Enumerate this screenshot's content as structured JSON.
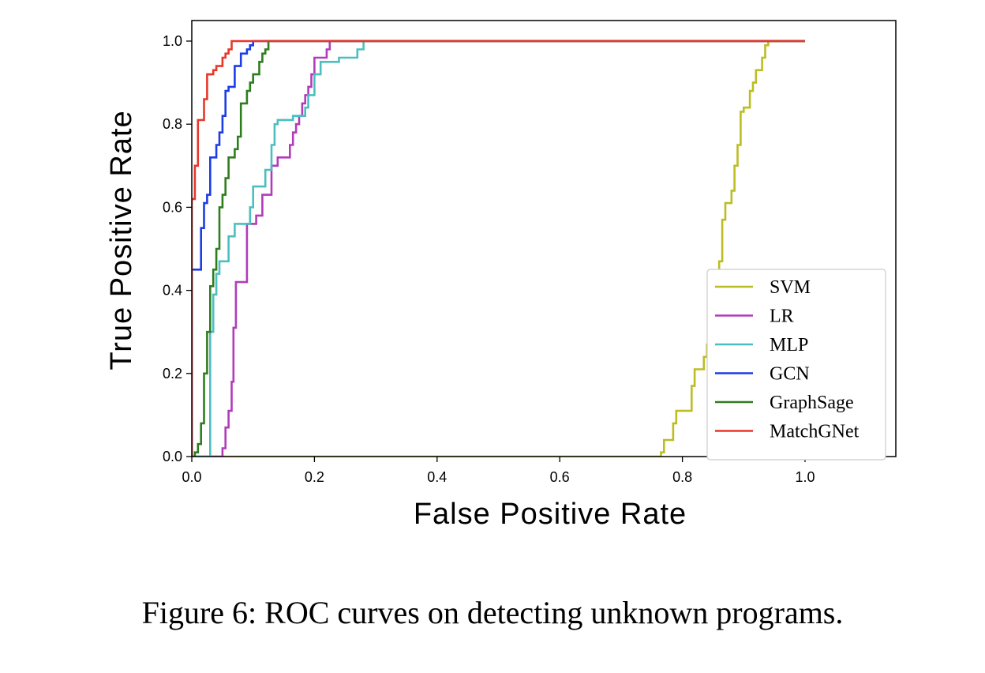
{
  "caption": "Figure 6: ROC curves on detecting unknown programs.",
  "chart_data": {
    "type": "line",
    "title": "",
    "xlabel": "False Positive Rate",
    "ylabel": "True Positive Rate",
    "xlim": [
      0.0,
      1.15
    ],
    "ylim": [
      0.0,
      1.05
    ],
    "xticks": [
      0.0,
      0.2,
      0.4,
      0.6,
      0.8,
      1.0
    ],
    "xtick_labels": [
      "0.0",
      "0.2",
      "0.4",
      "0.6",
      "0.8",
      "1.0"
    ],
    "yticks": [
      0.0,
      0.2,
      0.4,
      0.6,
      0.8,
      1.0
    ],
    "ytick_labels": [
      "0.0",
      "0.2",
      "0.4",
      "0.6",
      "0.8",
      "1.0"
    ],
    "grid": false,
    "legend_position": "lower-right",
    "series": [
      {
        "name": "SVM",
        "color": "#bcbd22",
        "points": [
          [
            0,
            0
          ],
          [
            0.765,
            0
          ],
          [
            0.765,
            0.01
          ],
          [
            0.77,
            0.01
          ],
          [
            0.77,
            0.04
          ],
          [
            0.785,
            0.04
          ],
          [
            0.785,
            0.08
          ],
          [
            0.79,
            0.08
          ],
          [
            0.79,
            0.11
          ],
          [
            0.815,
            0.11
          ],
          [
            0.815,
            0.17
          ],
          [
            0.82,
            0.17
          ],
          [
            0.82,
            0.21
          ],
          [
            0.835,
            0.21
          ],
          [
            0.835,
            0.24
          ],
          [
            0.84,
            0.24
          ],
          [
            0.84,
            0.27
          ],
          [
            0.845,
            0.27
          ],
          [
            0.845,
            0.32
          ],
          [
            0.85,
            0.32
          ],
          [
            0.85,
            0.36
          ],
          [
            0.855,
            0.36
          ],
          [
            0.855,
            0.42
          ],
          [
            0.86,
            0.42
          ],
          [
            0.86,
            0.47
          ],
          [
            0.865,
            0.47
          ],
          [
            0.865,
            0.57
          ],
          [
            0.87,
            0.57
          ],
          [
            0.87,
            0.61
          ],
          [
            0.88,
            0.61
          ],
          [
            0.88,
            0.64
          ],
          [
            0.885,
            0.64
          ],
          [
            0.885,
            0.7
          ],
          [
            0.89,
            0.7
          ],
          [
            0.89,
            0.75
          ],
          [
            0.895,
            0.75
          ],
          [
            0.895,
            0.83
          ],
          [
            0.9,
            0.83
          ],
          [
            0.9,
            0.84
          ],
          [
            0.91,
            0.84
          ],
          [
            0.91,
            0.88
          ],
          [
            0.915,
            0.88
          ],
          [
            0.915,
            0.9
          ],
          [
            0.92,
            0.9
          ],
          [
            0.92,
            0.93
          ],
          [
            0.93,
            0.93
          ],
          [
            0.93,
            0.96
          ],
          [
            0.935,
            0.96
          ],
          [
            0.935,
            0.99
          ],
          [
            0.94,
            0.99
          ],
          [
            0.94,
            1.0
          ],
          [
            1.0,
            1.0
          ]
        ]
      },
      {
        "name": "LR",
        "color": "#b23bbb",
        "points": [
          [
            0,
            0
          ],
          [
            0.05,
            0
          ],
          [
            0.05,
            0.02
          ],
          [
            0.055,
            0.02
          ],
          [
            0.055,
            0.07
          ],
          [
            0.06,
            0.07
          ],
          [
            0.06,
            0.11
          ],
          [
            0.065,
            0.11
          ],
          [
            0.065,
            0.18
          ],
          [
            0.068,
            0.18
          ],
          [
            0.068,
            0.31
          ],
          [
            0.072,
            0.31
          ],
          [
            0.072,
            0.42
          ],
          [
            0.09,
            0.42
          ],
          [
            0.09,
            0.56
          ],
          [
            0.105,
            0.56
          ],
          [
            0.105,
            0.58
          ],
          [
            0.115,
            0.58
          ],
          [
            0.115,
            0.63
          ],
          [
            0.13,
            0.63
          ],
          [
            0.13,
            0.7
          ],
          [
            0.14,
            0.7
          ],
          [
            0.14,
            0.72
          ],
          [
            0.16,
            0.72
          ],
          [
            0.16,
            0.75
          ],
          [
            0.165,
            0.75
          ],
          [
            0.165,
            0.78
          ],
          [
            0.17,
            0.78
          ],
          [
            0.17,
            0.8
          ],
          [
            0.175,
            0.8
          ],
          [
            0.175,
            0.82
          ],
          [
            0.18,
            0.82
          ],
          [
            0.18,
            0.85
          ],
          [
            0.185,
            0.85
          ],
          [
            0.185,
            0.87
          ],
          [
            0.19,
            0.87
          ],
          [
            0.19,
            0.89
          ],
          [
            0.195,
            0.89
          ],
          [
            0.195,
            0.92
          ],
          [
            0.2,
            0.92
          ],
          [
            0.2,
            0.96
          ],
          [
            0.22,
            0.96
          ],
          [
            0.22,
            0.98
          ],
          [
            0.225,
            0.98
          ],
          [
            0.225,
            1.0
          ],
          [
            1.0,
            1.0
          ]
        ]
      },
      {
        "name": "MLP",
        "color": "#4bbfbf",
        "points": [
          [
            0,
            0
          ],
          [
            0.03,
            0
          ],
          [
            0.03,
            0.3
          ],
          [
            0.035,
            0.3
          ],
          [
            0.035,
            0.39
          ],
          [
            0.04,
            0.39
          ],
          [
            0.04,
            0.44
          ],
          [
            0.045,
            0.44
          ],
          [
            0.045,
            0.47
          ],
          [
            0.06,
            0.47
          ],
          [
            0.06,
            0.53
          ],
          [
            0.07,
            0.53
          ],
          [
            0.07,
            0.56
          ],
          [
            0.095,
            0.56
          ],
          [
            0.095,
            0.6
          ],
          [
            0.1,
            0.6
          ],
          [
            0.1,
            0.65
          ],
          [
            0.12,
            0.65
          ],
          [
            0.12,
            0.69
          ],
          [
            0.13,
            0.69
          ],
          [
            0.13,
            0.75
          ],
          [
            0.135,
            0.75
          ],
          [
            0.135,
            0.8
          ],
          [
            0.14,
            0.8
          ],
          [
            0.14,
            0.81
          ],
          [
            0.165,
            0.81
          ],
          [
            0.165,
            0.82
          ],
          [
            0.185,
            0.82
          ],
          [
            0.185,
            0.84
          ],
          [
            0.19,
            0.84
          ],
          [
            0.19,
            0.87
          ],
          [
            0.2,
            0.87
          ],
          [
            0.2,
            0.92
          ],
          [
            0.21,
            0.92
          ],
          [
            0.21,
            0.95
          ],
          [
            0.24,
            0.95
          ],
          [
            0.24,
            0.96
          ],
          [
            0.27,
            0.96
          ],
          [
            0.27,
            0.98
          ],
          [
            0.28,
            0.98
          ],
          [
            0.28,
            1.0
          ],
          [
            1.0,
            1.0
          ]
        ]
      },
      {
        "name": "GCN",
        "color": "#1c3ce6",
        "points": [
          [
            0,
            0
          ],
          [
            0,
            0.45
          ],
          [
            0.015,
            0.45
          ],
          [
            0.015,
            0.55
          ],
          [
            0.02,
            0.55
          ],
          [
            0.02,
            0.61
          ],
          [
            0.025,
            0.61
          ],
          [
            0.025,
            0.63
          ],
          [
            0.03,
            0.63
          ],
          [
            0.03,
            0.72
          ],
          [
            0.04,
            0.72
          ],
          [
            0.04,
            0.75
          ],
          [
            0.045,
            0.75
          ],
          [
            0.045,
            0.78
          ],
          [
            0.05,
            0.78
          ],
          [
            0.05,
            0.82
          ],
          [
            0.055,
            0.82
          ],
          [
            0.055,
            0.88
          ],
          [
            0.06,
            0.88
          ],
          [
            0.06,
            0.89
          ],
          [
            0.07,
            0.89
          ],
          [
            0.07,
            0.94
          ],
          [
            0.08,
            0.94
          ],
          [
            0.08,
            0.97
          ],
          [
            0.09,
            0.97
          ],
          [
            0.09,
            0.98
          ],
          [
            0.095,
            0.98
          ],
          [
            0.095,
            0.99
          ],
          [
            0.1,
            0.99
          ],
          [
            0.1,
            1.0
          ],
          [
            1.0,
            1.0
          ]
        ]
      },
      {
        "name": "GraphSage",
        "color": "#2e7d1e",
        "points": [
          [
            0,
            0
          ],
          [
            0.005,
            0
          ],
          [
            0.005,
            0.01
          ],
          [
            0.01,
            0.01
          ],
          [
            0.01,
            0.03
          ],
          [
            0.015,
            0.03
          ],
          [
            0.015,
            0.08
          ],
          [
            0.02,
            0.08
          ],
          [
            0.02,
            0.2
          ],
          [
            0.025,
            0.2
          ],
          [
            0.025,
            0.3
          ],
          [
            0.03,
            0.3
          ],
          [
            0.03,
            0.41
          ],
          [
            0.035,
            0.41
          ],
          [
            0.035,
            0.45
          ],
          [
            0.04,
            0.45
          ],
          [
            0.04,
            0.5
          ],
          [
            0.045,
            0.5
          ],
          [
            0.045,
            0.6
          ],
          [
            0.05,
            0.6
          ],
          [
            0.05,
            0.63
          ],
          [
            0.055,
            0.63
          ],
          [
            0.055,
            0.67
          ],
          [
            0.06,
            0.67
          ],
          [
            0.06,
            0.72
          ],
          [
            0.07,
            0.72
          ],
          [
            0.07,
            0.74
          ],
          [
            0.075,
            0.74
          ],
          [
            0.075,
            0.77
          ],
          [
            0.08,
            0.77
          ],
          [
            0.08,
            0.85
          ],
          [
            0.09,
            0.85
          ],
          [
            0.09,
            0.88
          ],
          [
            0.095,
            0.88
          ],
          [
            0.095,
            0.9
          ],
          [
            0.1,
            0.9
          ],
          [
            0.1,
            0.92
          ],
          [
            0.11,
            0.92
          ],
          [
            0.11,
            0.95
          ],
          [
            0.115,
            0.95
          ],
          [
            0.115,
            0.97
          ],
          [
            0.12,
            0.97
          ],
          [
            0.12,
            0.98
          ],
          [
            0.125,
            0.98
          ],
          [
            0.125,
            1.0
          ],
          [
            1.0,
            1.0
          ]
        ]
      },
      {
        "name": "MatchGNet",
        "color": "#e8372a",
        "points": [
          [
            0,
            0
          ],
          [
            0,
            0.62
          ],
          [
            0.005,
            0.62
          ],
          [
            0.005,
            0.7
          ],
          [
            0.01,
            0.7
          ],
          [
            0.01,
            0.81
          ],
          [
            0.02,
            0.81
          ],
          [
            0.02,
            0.86
          ],
          [
            0.025,
            0.86
          ],
          [
            0.025,
            0.92
          ],
          [
            0.035,
            0.92
          ],
          [
            0.035,
            0.93
          ],
          [
            0.04,
            0.93
          ],
          [
            0.04,
            0.94
          ],
          [
            0.05,
            0.94
          ],
          [
            0.05,
            0.96
          ],
          [
            0.055,
            0.96
          ],
          [
            0.055,
            0.97
          ],
          [
            0.06,
            0.97
          ],
          [
            0.06,
            0.98
          ],
          [
            0.065,
            0.98
          ],
          [
            0.065,
            1.0
          ],
          [
            1.0,
            1.0
          ]
        ]
      }
    ]
  }
}
